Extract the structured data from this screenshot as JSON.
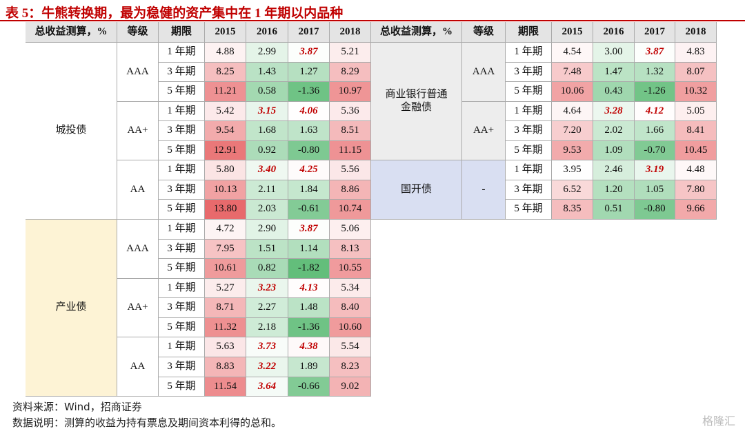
{
  "title": "表 5：牛熊转换期，最为稳健的资产集中在 1 年期以内品种",
  "tables": [
    {
      "header": [
        "总收益测算，%",
        "等级",
        "期限",
        "2015",
        "2016",
        "2017",
        "2018"
      ],
      "groups": [
        {
          "label": [
            "城投债"
          ],
          "color": "#ffffff",
          "grades": [
            {
              "grade": "AAA",
              "rows": [
                {
                  "term": "1 年期",
                  "values": [
                    "4.88",
                    "2.99",
                    "3.87",
                    "5.21"
                  ],
                  "emphasis": [
                    2
                  ]
                },
                {
                  "term": "3 年期",
                  "values": [
                    "8.25",
                    "1.43",
                    "1.27",
                    "8.29"
                  ],
                  "emphasis": []
                },
                {
                  "term": "5 年期",
                  "values": [
                    "11.21",
                    "0.58",
                    "-1.36",
                    "10.97"
                  ],
                  "emphasis": []
                }
              ]
            },
            {
              "grade": "AA+",
              "rows": [
                {
                  "term": "1 年期",
                  "values": [
                    "5.42",
                    "3.15",
                    "4.06",
                    "5.36"
                  ],
                  "emphasis": [
                    1,
                    2
                  ]
                },
                {
                  "term": "3 年期",
                  "values": [
                    "9.54",
                    "1.68",
                    "1.63",
                    "8.51"
                  ],
                  "emphasis": []
                },
                {
                  "term": "5 年期",
                  "values": [
                    "12.91",
                    "0.92",
                    "-0.80",
                    "11.15"
                  ],
                  "emphasis": []
                }
              ]
            },
            {
              "grade": "AA",
              "rows": [
                {
                  "term": "1 年期",
                  "values": [
                    "5.80",
                    "3.40",
                    "4.25",
                    "5.56"
                  ],
                  "emphasis": [
                    1,
                    2
                  ]
                },
                {
                  "term": "3 年期",
                  "values": [
                    "10.13",
                    "2.11",
                    "1.84",
                    "8.86"
                  ],
                  "emphasis": []
                },
                {
                  "term": "5 年期",
                  "values": [
                    "13.80",
                    "2.03",
                    "-0.61",
                    "10.74"
                  ],
                  "emphasis": []
                }
              ]
            }
          ]
        },
        {
          "label": [
            "产业债"
          ],
          "color": "#fdf3d5",
          "grades": [
            {
              "grade": "AAA",
              "rows": [
                {
                  "term": "1 年期",
                  "values": [
                    "4.72",
                    "2.90",
                    "3.87",
                    "5.06"
                  ],
                  "emphasis": [
                    2
                  ]
                },
                {
                  "term": "3 年期",
                  "values": [
                    "7.95",
                    "1.51",
                    "1.14",
                    "8.13"
                  ],
                  "emphasis": []
                },
                {
                  "term": "5 年期",
                  "values": [
                    "10.61",
                    "0.82",
                    "-1.82",
                    "10.55"
                  ],
                  "emphasis": []
                }
              ]
            },
            {
              "grade": "AA+",
              "rows": [
                {
                  "term": "1 年期",
                  "values": [
                    "5.27",
                    "3.23",
                    "4.13",
                    "5.34"
                  ],
                  "emphasis": [
                    1,
                    2
                  ]
                },
                {
                  "term": "3 年期",
                  "values": [
                    "8.71",
                    "2.27",
                    "1.48",
                    "8.40"
                  ],
                  "emphasis": []
                },
                {
                  "term": "5 年期",
                  "values": [
                    "11.32",
                    "2.18",
                    "-1.36",
                    "10.60"
                  ],
                  "emphasis": []
                }
              ]
            },
            {
              "grade": "AA",
              "rows": [
                {
                  "term": "1 年期",
                  "values": [
                    "5.63",
                    "3.73",
                    "4.38",
                    "5.54"
                  ],
                  "emphasis": [
                    1,
                    2
                  ]
                },
                {
                  "term": "3 年期",
                  "values": [
                    "8.83",
                    "3.22",
                    "1.89",
                    "8.23"
                  ],
                  "emphasis": [
                    1
                  ]
                },
                {
                  "term": "5 年期",
                  "values": [
                    "11.54",
                    "3.64",
                    "-0.66",
                    "9.02"
                  ],
                  "emphasis": [
                    1
                  ]
                }
              ]
            }
          ]
        }
      ]
    },
    {
      "header": [
        "总收益测算，%",
        "等级",
        "期限",
        "2015",
        "2016",
        "2017",
        "2018"
      ],
      "groups": [
        {
          "label": [
            "商业银行普通",
            "金融债"
          ],
          "color": "#ededed",
          "grades": [
            {
              "grade": "AAA",
              "color": "#ededed",
              "rows": [
                {
                  "term": "1 年期",
                  "values": [
                    "4.54",
                    "3.00",
                    "3.87",
                    "4.83"
                  ],
                  "emphasis": [
                    2
                  ]
                },
                {
                  "term": "3 年期",
                  "values": [
                    "7.48",
                    "1.47",
                    "1.32",
                    "8.07"
                  ],
                  "emphasis": []
                },
                {
                  "term": "5 年期",
                  "values": [
                    "10.06",
                    "0.43",
                    "-1.26",
                    "10.32"
                  ],
                  "emphasis": []
                }
              ]
            },
            {
              "grade": "AA+",
              "color": "#ededed",
              "rows": [
                {
                  "term": "1 年期",
                  "values": [
                    "4.64",
                    "3.28",
                    "4.12",
                    "5.05"
                  ],
                  "emphasis": [
                    1,
                    2
                  ]
                },
                {
                  "term": "3 年期",
                  "values": [
                    "7.20",
                    "2.02",
                    "1.66",
                    "8.41"
                  ],
                  "emphasis": []
                },
                {
                  "term": "5 年期",
                  "values": [
                    "9.53",
                    "1.09",
                    "-0.70",
                    "10.45"
                  ],
                  "emphasis": []
                }
              ]
            }
          ]
        },
        {
          "label": [
            "国开债"
          ],
          "color": "#d9dff2",
          "grades": [
            {
              "grade": "-",
              "color": "#d9dff2",
              "rows": [
                {
                  "term": "1 年期",
                  "values": [
                    "3.95",
                    "2.46",
                    "3.19",
                    "4.48"
                  ],
                  "emphasis": [
                    2
                  ]
                },
                {
                  "term": "3 年期",
                  "values": [
                    "6.52",
                    "1.20",
                    "1.05",
                    "7.80"
                  ],
                  "emphasis": []
                },
                {
                  "term": "5 年期",
                  "values": [
                    "8.35",
                    "0.51",
                    "-0.80",
                    "9.66"
                  ],
                  "emphasis": []
                }
              ]
            }
          ]
        }
      ]
    }
  ],
  "notes": [
    "资料来源：Wind，招商证券",
    "数据说明：测算的收益为持有票息及期间资本利得的总和。"
  ],
  "watermark": "格隆汇"
}
